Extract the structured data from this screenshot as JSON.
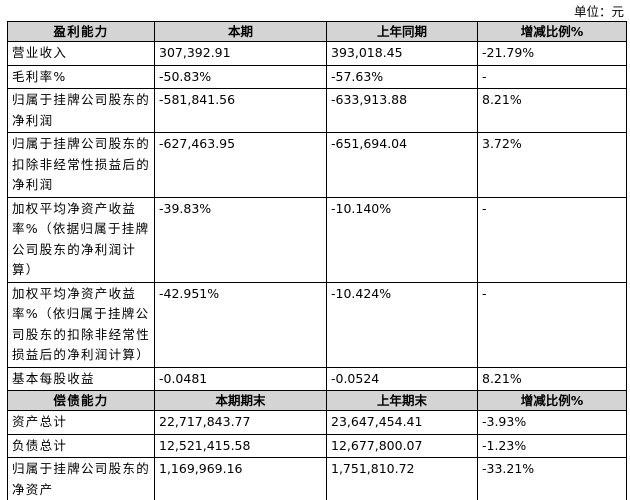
{
  "unit": "单位：元",
  "table": {
    "sections": [
      {
        "header": [
          "盈利能力",
          "本期",
          "上年同期",
          "增减比例%"
        ],
        "rows": [
          [
            "营业收入",
            "307,392.91",
            "393,018.45",
            "-21.79%"
          ],
          [
            "毛利率%",
            "-50.83%",
            "-57.63%",
            "-"
          ],
          [
            "归属于挂牌公司股东的净利润",
            "-581,841.56",
            "-633,913.88",
            "8.21%"
          ],
          [
            "归属于挂牌公司股东的扣除非经常性损益后的净利润",
            "-627,463.95",
            "-651,694.04",
            "3.72%"
          ],
          [
            "加权平均净资产收益率%（依据归属于挂牌公司股东的净利润计算）",
            "-39.83%",
            "-10.140%",
            "-"
          ],
          [
            "加权平均净资产收益率%（依归属于挂牌公司股东的扣除非经常性损益后的净利润计算）",
            "-42.951%",
            "-10.424%",
            "-"
          ],
          [
            "基本每股收益",
            "-0.0481",
            "-0.0524",
            "8.21%"
          ]
        ]
      },
      {
        "header": [
          "偿债能力",
          "本期期末",
          "上年期末",
          "增减比例%"
        ],
        "rows": [
          [
            "资产总计",
            "22,717,843.77",
            "23,647,454.41",
            "-3.93%"
          ],
          [
            "负债总计",
            "12,521,415.58",
            "12,677,800.07",
            "-1.23%"
          ],
          [
            "归属于挂牌公司股东的净资产",
            "1,169,969.16",
            "1,751,810.72",
            "-33.21%"
          ]
        ]
      }
    ]
  }
}
